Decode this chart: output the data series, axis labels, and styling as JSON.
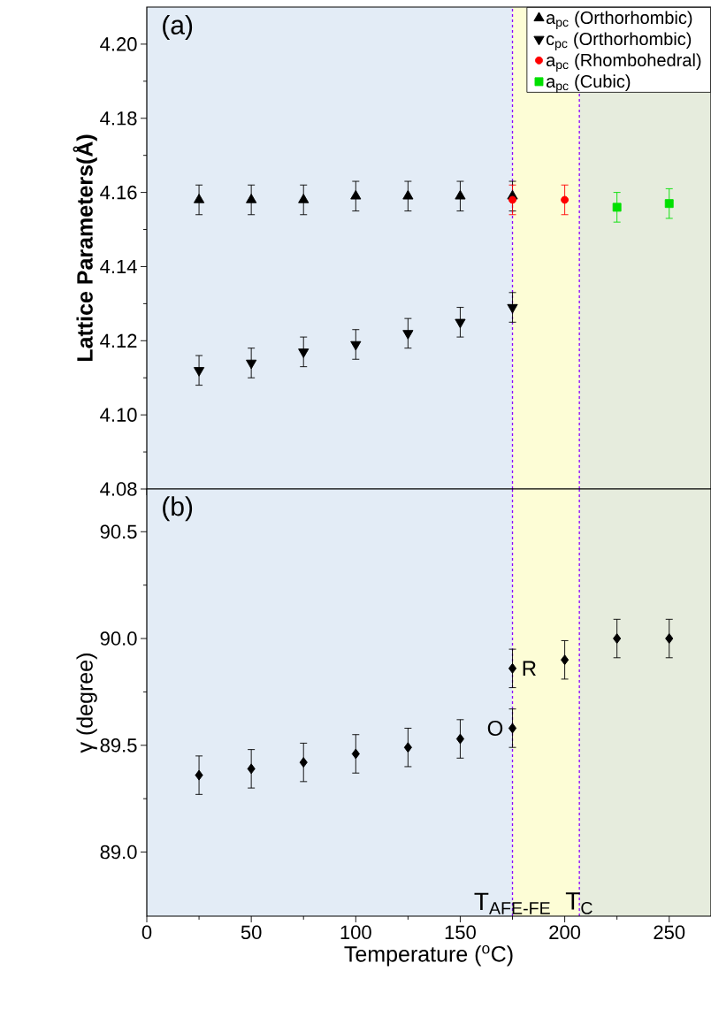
{
  "chart_data": [
    {
      "type": "scatter",
      "ylabel": "Lattice Parameters(Å)",
      "annotations": [
        "(a)"
      ],
      "legend": "top right",
      "tick_labels": "y",
      "xlim": [
        0,
        270
      ],
      "xticks": [
        0,
        50,
        100,
        150,
        200,
        250
      ],
      "ylim": [
        4.08,
        4.21
      ],
      "yticks": [
        {
          "value": 4.08,
          "label": "4.08"
        },
        {
          "value": 4.1,
          "label": "4.10"
        },
        {
          "value": 4.12,
          "label": "4.12"
        },
        {
          "value": 4.14,
          "label": "4.14"
        },
        {
          "value": 4.16,
          "label": "4.16"
        },
        {
          "value": 4.18,
          "label": "4.18"
        },
        {
          "value": 4.2,
          "label": "4.20"
        }
      ],
      "bands": [
        {
          "axis": "x",
          "from": 0,
          "to": 175,
          "color": "#e3ecf6"
        },
        {
          "axis": "x",
          "from": 175,
          "to": 207,
          "color": "#fdfdd6"
        },
        {
          "axis": "x",
          "from": 207,
          "to": 270,
          "color": "#e6ecdd"
        }
      ],
      "ref_lines": [
        {
          "axis": "x",
          "value": 175,
          "color": "#8b00ff",
          "line_style": "dashed"
        },
        {
          "axis": "x",
          "value": 207,
          "color": "#8b00ff",
          "line_style": "dashed"
        }
      ],
      "series": [
        {
          "name": "a$_{pc}$ (Orthorhombic)",
          "color": "#000000",
          "marker": "triangle",
          "x": [
            25,
            50,
            75,
            100,
            125,
            150,
            175
          ],
          "values": [
            4.158,
            4.158,
            4.158,
            4.159,
            4.159,
            4.159,
            4.159
          ],
          "errors": [
            0.004,
            0.004,
            0.004,
            0.004,
            0.004,
            0.004,
            0.004
          ]
        },
        {
          "name": "c$_{pc}$ (Orthorhombic)",
          "color": "#000000",
          "marker": "triangle-down",
          "x": [
            25,
            50,
            75,
            100,
            125,
            150,
            175
          ],
          "values": [
            4.112,
            4.114,
            4.117,
            4.119,
            4.122,
            4.125,
            4.129
          ],
          "errors": [
            0.004,
            0.004,
            0.004,
            0.004,
            0.004,
            0.004,
            0.004
          ]
        },
        {
          "name": "a$_{pc}$ (Rhombohedral)",
          "color": "#ff0000",
          "marker": "circle",
          "x": [
            175,
            200
          ],
          "values": [
            4.158,
            4.158
          ],
          "errors": [
            0.004,
            0.004
          ]
        },
        {
          "name": "a$_{pc}$ (Cubic)",
          "color": "#00e000",
          "marker": "square",
          "x": [
            225,
            250
          ],
          "values": [
            4.156,
            4.157
          ],
          "errors": [
            0.004,
            0.004
          ]
        }
      ]
    },
    {
      "type": "scatter",
      "xlabel": "Temperature ($^{o}$C)",
      "ylabel": "γ (degree)",
      "annotations": [
        "(b)",
        {
          "text": "O",
          "x": 175,
          "y": 89.58
        },
        {
          "text": "R",
          "x": 175,
          "y": 89.86
        }
      ],
      "xlim": [
        0,
        270
      ],
      "xticks": [
        0,
        50,
        100,
        150,
        200,
        250
      ],
      "ylim": [
        88.7,
        90.7
      ],
      "yticks": [
        {
          "value": 89.0,
          "label": "89.0"
        },
        {
          "value": 89.5,
          "label": "89.5"
        },
        {
          "value": 90.0,
          "label": "90.0"
        },
        {
          "value": 90.5,
          "label": "90.5"
        }
      ],
      "bands": [
        {
          "axis": "x",
          "from": 0,
          "to": 175,
          "color": "#e3ecf6"
        },
        {
          "axis": "x",
          "from": 175,
          "to": 207,
          "color": "#fdfdd6"
        },
        {
          "axis": "x",
          "from": 207,
          "to": 270,
          "color": "#e6ecdd"
        }
      ],
      "ref_lines": [
        {
          "axis": "x",
          "value": 175,
          "label": "T$_{AFE-FE}$",
          "color": "#8b00ff",
          "line_style": "dashed"
        },
        {
          "axis": "x",
          "value": 207,
          "label": "T$_{C}$",
          "color": "#8b00ff",
          "line_style": "dashed"
        }
      ],
      "series": [
        {
          "color": "#000000",
          "marker": "diamond",
          "x": [
            25,
            50,
            75,
            100,
            125,
            150,
            175,
            175,
            200,
            225,
            250
          ],
          "values": [
            89.36,
            89.39,
            89.42,
            89.46,
            89.49,
            89.53,
            89.58,
            89.86,
            89.9,
            90.0,
            90.0
          ],
          "errors": [
            0.09,
            0.09,
            0.09,
            0.09,
            0.09,
            0.09,
            0.09,
            0.09,
            0.09,
            0.09,
            0.09
          ]
        }
      ]
    }
  ]
}
